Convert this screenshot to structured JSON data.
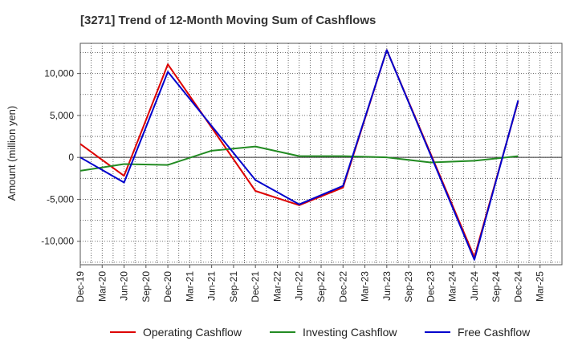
{
  "chart_data": {
    "type": "line",
    "title": "[3271]  Trend of 12-Month Moving Sum of Cashflows",
    "xlabel": "",
    "ylabel": "Amount (million yen)",
    "categories": [
      "Dec-19",
      "Mar-20",
      "Jun-20",
      "Sep-20",
      "Dec-20",
      "Mar-21",
      "Jun-21",
      "Sep-21",
      "Dec-21",
      "Mar-22",
      "Jun-22",
      "Sep-22",
      "Dec-22",
      "Mar-23",
      "Jun-23",
      "Sep-23",
      "Dec-23",
      "Mar-24",
      "Jun-24",
      "Sep-24",
      "Dec-24",
      "Mar-25"
    ],
    "ylim": [
      -12800,
      13600
    ],
    "yticks": [
      -10000,
      -5000,
      0,
      5000,
      10000
    ],
    "ytick_labels": [
      "-10,000",
      "-5,000",
      "0",
      "5,000",
      "10,000"
    ],
    "grid": true,
    "legend_position": "bottom",
    "series": [
      {
        "name": "Operating Cashflow",
        "color": "#dd0000",
        "values": [
          1600,
          null,
          -2200,
          null,
          11100,
          null,
          null,
          null,
          -4000,
          null,
          -5700,
          null,
          -3600,
          null,
          12800,
          null,
          null,
          null,
          -11900,
          null,
          6700,
          null
        ]
      },
      {
        "name": "Investing Cashflow",
        "color": "#228b22",
        "values": [
          -1600,
          null,
          -800,
          null,
          -900,
          null,
          800,
          null,
          1300,
          null,
          150,
          null,
          150,
          null,
          0,
          null,
          -600,
          null,
          -400,
          null,
          150,
          null
        ]
      },
      {
        "name": "Free Cashflow",
        "color": "#0000cc",
        "values": [
          0,
          null,
          -3000,
          null,
          10200,
          null,
          null,
          null,
          -2700,
          null,
          -5600,
          null,
          -3400,
          null,
          12800,
          null,
          null,
          null,
          -12200,
          null,
          6800,
          null
        ]
      }
    ]
  }
}
